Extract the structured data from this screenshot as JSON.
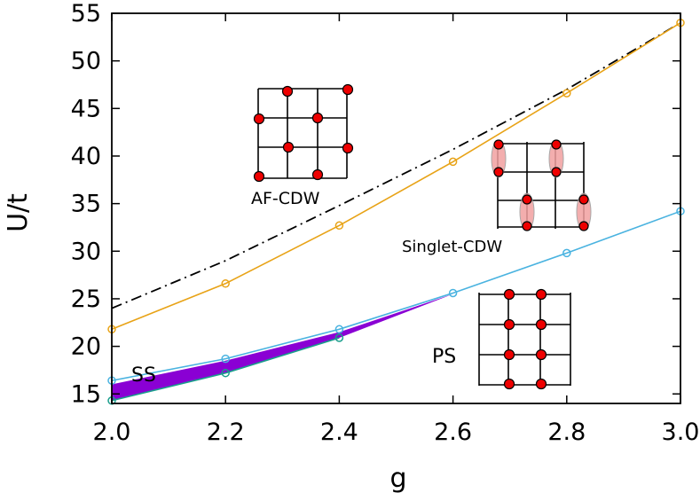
{
  "chart_data": {
    "type": "line",
    "xlabel": "g",
    "ylabel": "U/t",
    "xlim": [
      2.0,
      3.0
    ],
    "ylim": [
      14,
      55
    ],
    "xticks": [
      "2.0",
      "2.2",
      "2.4",
      "2.6",
      "2.8",
      "3.0"
    ],
    "yticks": [
      "15",
      "20",
      "25",
      "30",
      "35",
      "40",
      "45",
      "50",
      "55"
    ],
    "series": [
      {
        "name": "AF-CDW boundary",
        "style": "dash-dot",
        "color": "#000000",
        "x": [
          2.0,
          2.2,
          2.4,
          2.6,
          2.8,
          3.0
        ],
        "y": [
          24.0,
          29.0,
          34.8,
          40.7,
          47.0,
          54.0
        ]
      },
      {
        "name": "Singlet-CDW upper boundary",
        "style": "solid-marker",
        "color": "#e8a317",
        "x": [
          2.0,
          2.2,
          2.4,
          2.6,
          2.8,
          3.0
        ],
        "y": [
          21.8,
          26.6,
          32.7,
          39.4,
          46.6,
          54.0
        ]
      },
      {
        "name": "PS upper boundary",
        "style": "solid-marker",
        "color": "#4ab3e0",
        "x": [
          2.0,
          2.2,
          2.4,
          2.6,
          2.8,
          3.0
        ],
        "y": [
          16.4,
          18.7,
          21.8,
          25.6,
          29.8,
          34.2
        ]
      },
      {
        "name": "SS lower boundary",
        "style": "solid-marker",
        "color": "#1a9e8c",
        "x": [
          2.0,
          2.2,
          2.4
        ],
        "y": [
          14.3,
          17.2,
          20.9
        ]
      }
    ],
    "shaded_region": {
      "label": "SS",
      "color": "#8a00d4",
      "upper": {
        "x": [
          2.0,
          2.2,
          2.4,
          2.6
        ],
        "y": [
          16.0,
          18.5,
          21.5,
          25.5
        ]
      },
      "lower": {
        "x": [
          2.0,
          2.2,
          2.4,
          2.6
        ],
        "y": [
          14.3,
          17.2,
          20.9,
          25.5
        ]
      }
    },
    "annotations": [
      "AF-CDW",
      "Singlet-CDW",
      "PS",
      "SS"
    ]
  }
}
